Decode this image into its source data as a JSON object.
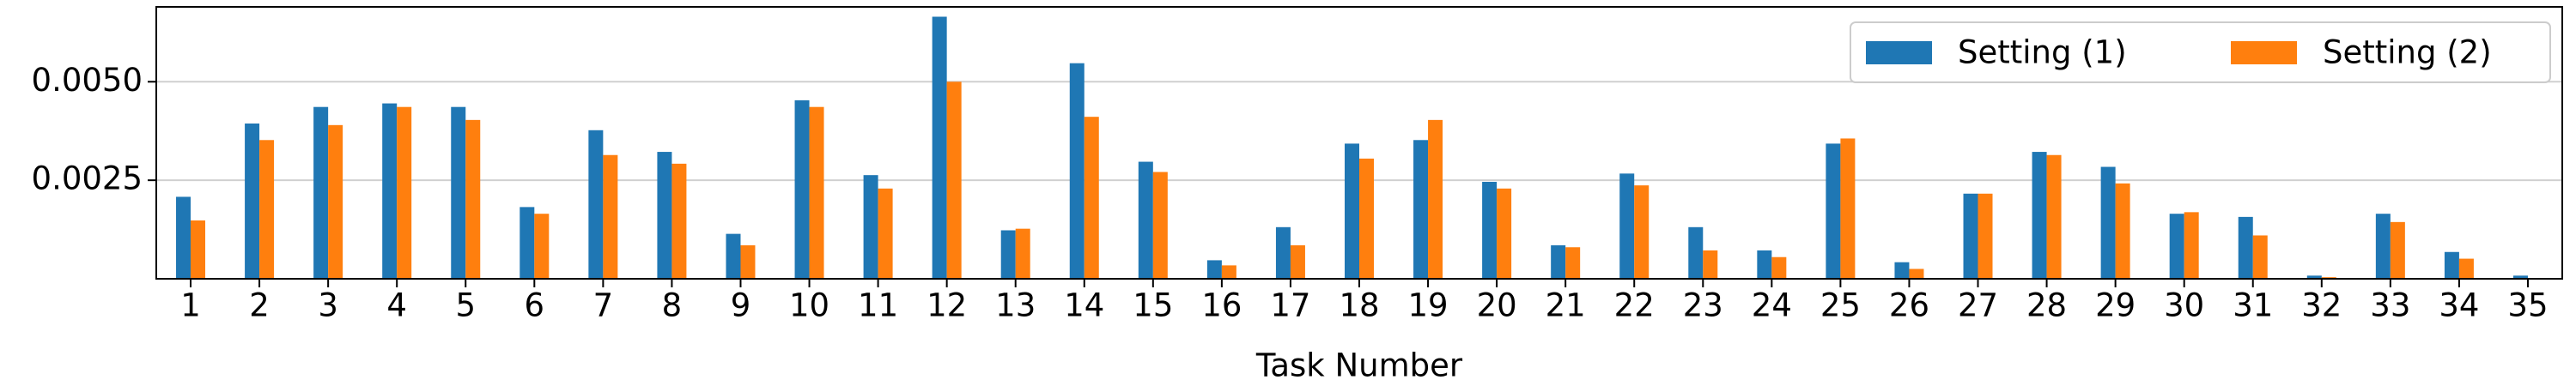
{
  "chart_data": {
    "type": "bar",
    "x_label": "Task Number",
    "categories": [
      "1",
      "2",
      "3",
      "4",
      "5",
      "6",
      "7",
      "8",
      "9",
      "10",
      "11",
      "12",
      "13",
      "14",
      "15",
      "16",
      "17",
      "18",
      "19",
      "20",
      "21",
      "22",
      "23",
      "24",
      "25",
      "26",
      "27",
      "28",
      "29",
      "30",
      "31",
      "32",
      "33",
      "34",
      "35"
    ],
    "series": [
      {
        "name": "Setting (1)",
        "color": "#1f77b4",
        "values": [
          0.00208,
          0.00394,
          0.00436,
          0.00445,
          0.00436,
          0.00182,
          0.00377,
          0.00322,
          0.00114,
          0.00453,
          0.00263,
          0.00665,
          0.00123,
          0.00547,
          0.00297,
          0.00047,
          0.00131,
          0.00343,
          0.00352,
          0.00246,
          0.00085,
          0.00267,
          0.00131,
          0.00072,
          0.00343,
          0.00042,
          0.00216,
          0.00322,
          0.00284,
          0.00165,
          0.00157,
          8e-05,
          0.00165,
          0.00068,
          8e-05
        ]
      },
      {
        "name": "Setting (2)",
        "color": "#ff7f0e",
        "values": [
          0.00148,
          0.00352,
          0.0039,
          0.00436,
          0.00403,
          0.00165,
          0.00314,
          0.00292,
          0.00085,
          0.00436,
          0.00229,
          0.005,
          0.00127,
          0.00411,
          0.00271,
          0.00034,
          0.00085,
          0.00305,
          0.00403,
          0.00229,
          0.0008,
          0.00237,
          0.00072,
          0.00055,
          0.00356,
          0.00025,
          0.00216,
          0.00314,
          0.00242,
          0.00169,
          0.0011,
          4e-05,
          0.00144,
          0.00051,
          1e-05
        ]
      }
    ],
    "ylim": [
      0,
      0.0069
    ],
    "yticks": [
      {
        "value": 0.0025,
        "label": "0.0025"
      },
      {
        "value": 0.005,
        "label": "0.0050"
      }
    ],
    "grid": true,
    "legend": "upper right"
  }
}
